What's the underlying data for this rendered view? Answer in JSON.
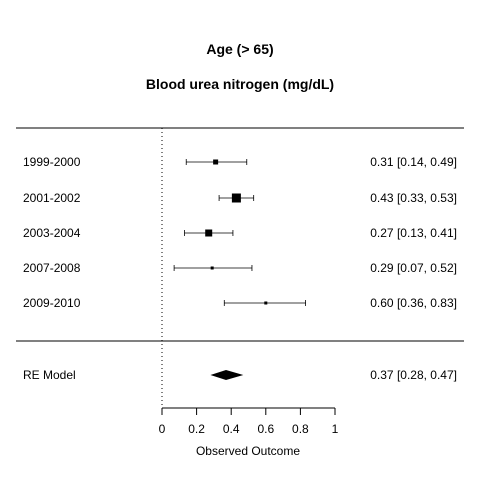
{
  "chart_data": {
    "type": "forest",
    "title": "Age (> 65)",
    "subtitle": "Blood urea nitrogen (mg/dL)",
    "xlabel": "Observed Outcome",
    "xlim": [
      0,
      1
    ],
    "xticks": [
      0,
      0.2,
      0.4,
      0.6,
      0.8,
      1
    ],
    "xtick_labels": [
      "0",
      "0.2",
      "0.4",
      "0.6",
      "0.8",
      "1"
    ],
    "reference_line": 0,
    "studies": [
      {
        "label": "1999-2000",
        "estimate": 0.31,
        "ci_lower": 0.14,
        "ci_upper": 0.49,
        "text": "0.31 [0.14, 0.49]",
        "weight": "small"
      },
      {
        "label": "2001-2002",
        "estimate": 0.43,
        "ci_lower": 0.33,
        "ci_upper": 0.53,
        "text": "0.43 [0.33, 0.53]",
        "weight": "large"
      },
      {
        "label": "2003-2004",
        "estimate": 0.27,
        "ci_lower": 0.13,
        "ci_upper": 0.41,
        "text": "0.27 [0.13, 0.41]",
        "weight": "medium"
      },
      {
        "label": "2007-2008",
        "estimate": 0.29,
        "ci_lower": 0.07,
        "ci_upper": 0.52,
        "text": "0.29 [0.07, 0.52]",
        "weight": "tiny"
      },
      {
        "label": "2009-2010",
        "estimate": 0.6,
        "ci_lower": 0.36,
        "ci_upper": 0.83,
        "text": "0.60 [0.36, 0.83]",
        "weight": "tiny"
      }
    ],
    "summary": {
      "label": "RE Model",
      "estimate": 0.37,
      "ci_lower": 0.28,
      "ci_upper": 0.47,
      "text": "0.37 [0.28, 0.47]"
    }
  }
}
